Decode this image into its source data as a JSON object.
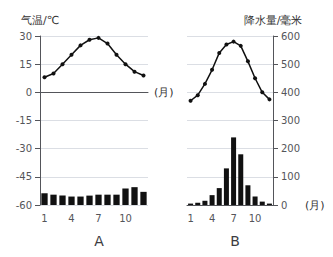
{
  "chart_data": [
    {
      "type": "combo",
      "title": "A",
      "ylabel": "气温/℃",
      "xlabel": "(月)",
      "categories": [
        "1",
        null,
        null,
        "4",
        null,
        null,
        "7",
        null,
        null,
        "10",
        null,
        null
      ],
      "ylim": [
        -60,
        30
      ],
      "yticks": [
        30,
        15,
        0,
        -15,
        -30,
        -45,
        -60
      ],
      "grid": true,
      "series": [
        {
          "type": "bar",
          "color": "#111111",
          "values": [
            -53.75,
            -54.5,
            -55,
            -55.5,
            -55.5,
            -55,
            -54.5,
            -54.5,
            -54.5,
            -51.25,
            -50.5,
            -53
          ]
        },
        {
          "type": "line",
          "color": "#111111",
          "marker": "circle",
          "values": [
            8,
            10,
            15,
            20,
            25,
            28,
            29,
            26,
            20,
            15,
            11,
            9
          ]
        }
      ]
    },
    {
      "type": "combo",
      "title": "B",
      "ylabel": "降水量/毫米",
      "xlabel": "(月)",
      "categories": [
        "1",
        null,
        null,
        "4",
        null,
        null,
        "7",
        null,
        null,
        "10",
        null,
        null
      ],
      "ylim": [
        0,
        600
      ],
      "yticks": [
        600,
        500,
        400,
        300,
        200,
        100,
        0
      ],
      "grid": true,
      "series": [
        {
          "type": "bar",
          "color": "#111111",
          "values": [
            5,
            8,
            15,
            35,
            60,
            130,
            240,
            180,
            70,
            30,
            12,
            5
          ]
        },
        {
          "type": "line",
          "color": "#111111",
          "marker": "circle",
          "values": [
            370,
            390,
            430,
            480,
            540,
            570,
            580,
            565,
            510,
            450,
            400,
            375
          ]
        }
      ]
    }
  ]
}
